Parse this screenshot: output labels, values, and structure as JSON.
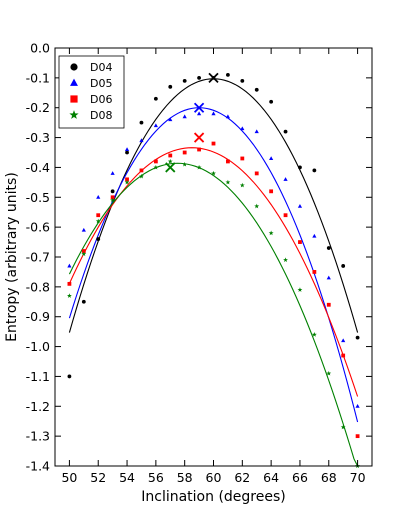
{
  "chart_data": {
    "type": "scatter",
    "xlabel": "Inclination (degrees)",
    "ylabel": "Entropy (arbitrary units)",
    "xlim": [
      49,
      71
    ],
    "ylim": [
      -1.4,
      0.0
    ],
    "xticks": [
      50,
      52,
      54,
      56,
      58,
      60,
      62,
      64,
      66,
      68,
      70
    ],
    "yticks": [
      0.0,
      -0.1,
      -0.2,
      -0.3,
      -0.4,
      -0.5,
      -0.6,
      -0.7,
      -0.8,
      -0.9,
      -1.0,
      -1.1,
      -1.2,
      -1.3,
      -1.4
    ],
    "ytick_labels": [
      "0.0",
      "-0.1",
      "-0.2",
      "-0.3",
      "-0.4",
      "-0.5",
      "-0.6",
      "-0.7",
      "-0.8",
      "-0.9",
      "-1.0",
      "-1.1",
      "-1.2",
      "-1.3",
      "-1.4"
    ],
    "grid": false,
    "legend_position": "top-left",
    "series": [
      {
        "name": "D04",
        "color": "#000000",
        "marker": "circle",
        "x": [
          50,
          51,
          52,
          53,
          54,
          55,
          56,
          57,
          58,
          59,
          60,
          61,
          62,
          63,
          64,
          65,
          66,
          67,
          68,
          69,
          70
        ],
        "y": [
          -1.1,
          -0.85,
          -0.64,
          -0.48,
          -0.35,
          -0.25,
          -0.17,
          -0.13,
          -0.11,
          -0.1,
          -0.1,
          -0.09,
          -0.11,
          -0.14,
          -0.18,
          -0.28,
          -0.4,
          -0.41,
          -0.67,
          -0.73,
          -0.97
        ],
        "peak": {
          "x": 60,
          "y": -0.1
        },
        "fit": [
          -0.103,
          0.0,
          -0.0085
        ]
      },
      {
        "name": "D05",
        "color": "#0000ff",
        "marker": "triangle",
        "x": [
          50,
          51,
          52,
          53,
          54,
          55,
          56,
          57,
          58,
          59,
          60,
          61,
          62,
          63,
          64,
          65,
          66,
          67,
          68,
          69,
          70
        ],
        "y": [
          -0.73,
          -0.61,
          -0.5,
          -0.42,
          -0.34,
          -0.31,
          -0.26,
          -0.24,
          -0.23,
          -0.22,
          -0.22,
          -0.23,
          -0.27,
          -0.28,
          -0.37,
          -0.44,
          -0.53,
          -0.63,
          -0.77,
          -0.98,
          -1.2
        ],
        "peak": {
          "x": 59,
          "y": -0.2
        },
        "fit": [
          -0.2,
          59,
          -0.0087
        ]
      },
      {
        "name": "D06",
        "color": "#ff0000",
        "marker": "square",
        "x": [
          50,
          51,
          52,
          53,
          54,
          55,
          56,
          57,
          58,
          59,
          60,
          61,
          62,
          63,
          64,
          65,
          66,
          67,
          68,
          69,
          70
        ],
        "y": [
          -0.79,
          -0.68,
          -0.56,
          -0.5,
          -0.44,
          -0.41,
          -0.38,
          -0.36,
          -0.35,
          -0.34,
          -0.32,
          -0.38,
          -0.37,
          -0.42,
          -0.48,
          -0.56,
          -0.65,
          -0.75,
          -0.86,
          -1.03,
          -1.3
        ],
        "peak": {
          "x": 59,
          "y": -0.3
        },
        "fit": [
          -0.334,
          58.5,
          -0.0063
        ]
      },
      {
        "name": "D08",
        "color": "#008000",
        "marker": "star",
        "x": [
          50,
          51,
          52,
          53,
          54,
          55,
          56,
          57,
          58,
          59,
          60,
          61,
          62,
          63,
          64,
          65,
          66,
          67,
          68,
          69,
          70
        ],
        "y": [
          -0.83,
          -0.69,
          -0.58,
          -0.51,
          -0.45,
          -0.43,
          -0.4,
          -0.38,
          -0.39,
          -0.4,
          -0.42,
          -0.45,
          -0.46,
          -0.53,
          -0.62,
          -0.71,
          -0.81,
          -0.96,
          -1.09,
          -1.27,
          -1.4
        ],
        "peak": {
          "x": 57,
          "y": -0.4
        },
        "fit": [
          -0.386,
          57.5,
          -0.0066
        ]
      }
    ]
  }
}
